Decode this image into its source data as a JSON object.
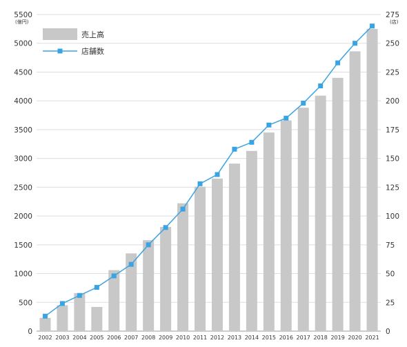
{
  "chart_data": {
    "type": "bar",
    "categories": [
      "2002",
      "2003",
      "2004",
      "2005",
      "2006",
      "2007",
      "2008",
      "2009",
      "2010",
      "2011",
      "2012",
      "2013",
      "2014",
      "2015",
      "2016",
      "2017",
      "2018",
      "2019",
      "2020",
      "2021"
    ],
    "series": [
      {
        "name": "売上高",
        "type": "bar",
        "axis": "left",
        "color": "#c8c8c8",
        "values": [
          230,
          450,
          660,
          420,
          1060,
          1350,
          1580,
          1810,
          2220,
          2510,
          2650,
          2910,
          3130,
          3450,
          3660,
          3880,
          4090,
          4400,
          4860,
          5250
        ]
      },
      {
        "name": "店舗数",
        "type": "line",
        "axis": "right",
        "color": "#3aa3e3",
        "values": [
          13,
          24,
          31,
          38,
          48,
          58,
          75,
          90,
          106,
          128,
          136,
          158,
          164,
          179,
          185,
          198,
          213,
          233,
          250,
          265
        ]
      }
    ],
    "left_axis": {
      "min": 0,
      "max": 5500,
      "step": 500,
      "unit": "(億円)"
    },
    "right_axis": {
      "min": 0,
      "max": 275,
      "step": 25,
      "unit": "(店)"
    },
    "grid": true,
    "legend_position": "top-left"
  }
}
